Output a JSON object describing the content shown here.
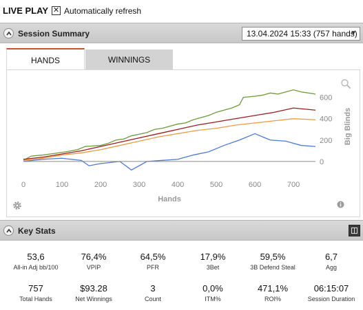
{
  "header": {
    "title": "LIVE PLAY",
    "auto_refresh_checked": "✕",
    "auto_refresh_label": "Automatically refresh"
  },
  "session_summary": {
    "title": "Session Summary",
    "session_select": "13.04.2024 15:33 (757 hands)",
    "tabs": [
      {
        "label": "HANDS",
        "active": true
      },
      {
        "label": "WINNINGS",
        "active": false
      }
    ]
  },
  "chart_data": {
    "type": "line",
    "xlabel": "Hands",
    "ylabel": "Big Blinds",
    "xlim": [
      0,
      757
    ],
    "ylim": [
      -110,
      700
    ],
    "x_ticks": [
      0,
      100,
      200,
      300,
      400,
      500,
      600,
      700
    ],
    "y_ticks": [
      0,
      200,
      400,
      600
    ],
    "grid": false,
    "series": [
      {
        "color": "#6a9a3a",
        "x": [
          0,
          20,
          50,
          80,
          110,
          140,
          160,
          200,
          220,
          240,
          260,
          280,
          300,
          320,
          340,
          360,
          380,
          400,
          420,
          440,
          460,
          480,
          500,
          520,
          540,
          560,
          570,
          600,
          620,
          640,
          660,
          680,
          700,
          720,
          740,
          757
        ],
        "y": [
          10,
          50,
          60,
          75,
          90,
          110,
          140,
          150,
          170,
          200,
          210,
          240,
          255,
          270,
          300,
          310,
          330,
          350,
          360,
          390,
          410,
          430,
          460,
          480,
          500,
          530,
          600,
          610,
          620,
          640,
          630,
          650,
          670,
          650,
          640,
          630
        ]
      },
      {
        "color": "#9b1c1c",
        "x": [
          0,
          50,
          100,
          150,
          200,
          250,
          300,
          350,
          400,
          450,
          500,
          550,
          600,
          650,
          700,
          757
        ],
        "y": [
          20,
          40,
          70,
          100,
          140,
          180,
          220,
          260,
          300,
          340,
          370,
          400,
          430,
          460,
          500,
          480
        ]
      },
      {
        "color": "#f09a40",
        "x": [
          0,
          50,
          100,
          150,
          200,
          250,
          300,
          350,
          400,
          450,
          500,
          550,
          600,
          650,
          700,
          757
        ],
        "y": [
          10,
          30,
          60,
          80,
          110,
          150,
          190,
          230,
          260,
          290,
          310,
          340,
          360,
          380,
          400,
          390
        ]
      },
      {
        "color": "#4c78d8",
        "x": [
          0,
          50,
          100,
          150,
          170,
          200,
          250,
          280,
          320,
          360,
          400,
          440,
          480,
          520,
          560,
          600,
          640,
          680,
          720,
          757
        ],
        "y": [
          0,
          20,
          30,
          10,
          -40,
          -20,
          0,
          -80,
          0,
          10,
          20,
          60,
          90,
          150,
          200,
          260,
          200,
          190,
          150,
          140
        ]
      }
    ]
  },
  "key_stats": {
    "title": "Key Stats",
    "row1": [
      {
        "value": "53,6",
        "label": "All-in Adj bb/100"
      },
      {
        "value": "76,4%",
        "label": "VPIP"
      },
      {
        "value": "64,5%",
        "label": "PFR"
      },
      {
        "value": "17,9%",
        "label": "3Bet"
      },
      {
        "value": "59,5%",
        "label": "3B Defend Steal"
      },
      {
        "value": "6,7",
        "label": "Agg"
      }
    ],
    "row2": [
      {
        "value": "757",
        "label": "Total Hands"
      },
      {
        "value": "$93.28",
        "label": "Net Winnings"
      },
      {
        "value": "3",
        "label": "Count"
      },
      {
        "value": "0,0%",
        "label": "ITM%"
      },
      {
        "value": "471,1%",
        "label": "ROI%"
      },
      {
        "value": "06:15:07",
        "label": "Session Duration"
      }
    ]
  }
}
